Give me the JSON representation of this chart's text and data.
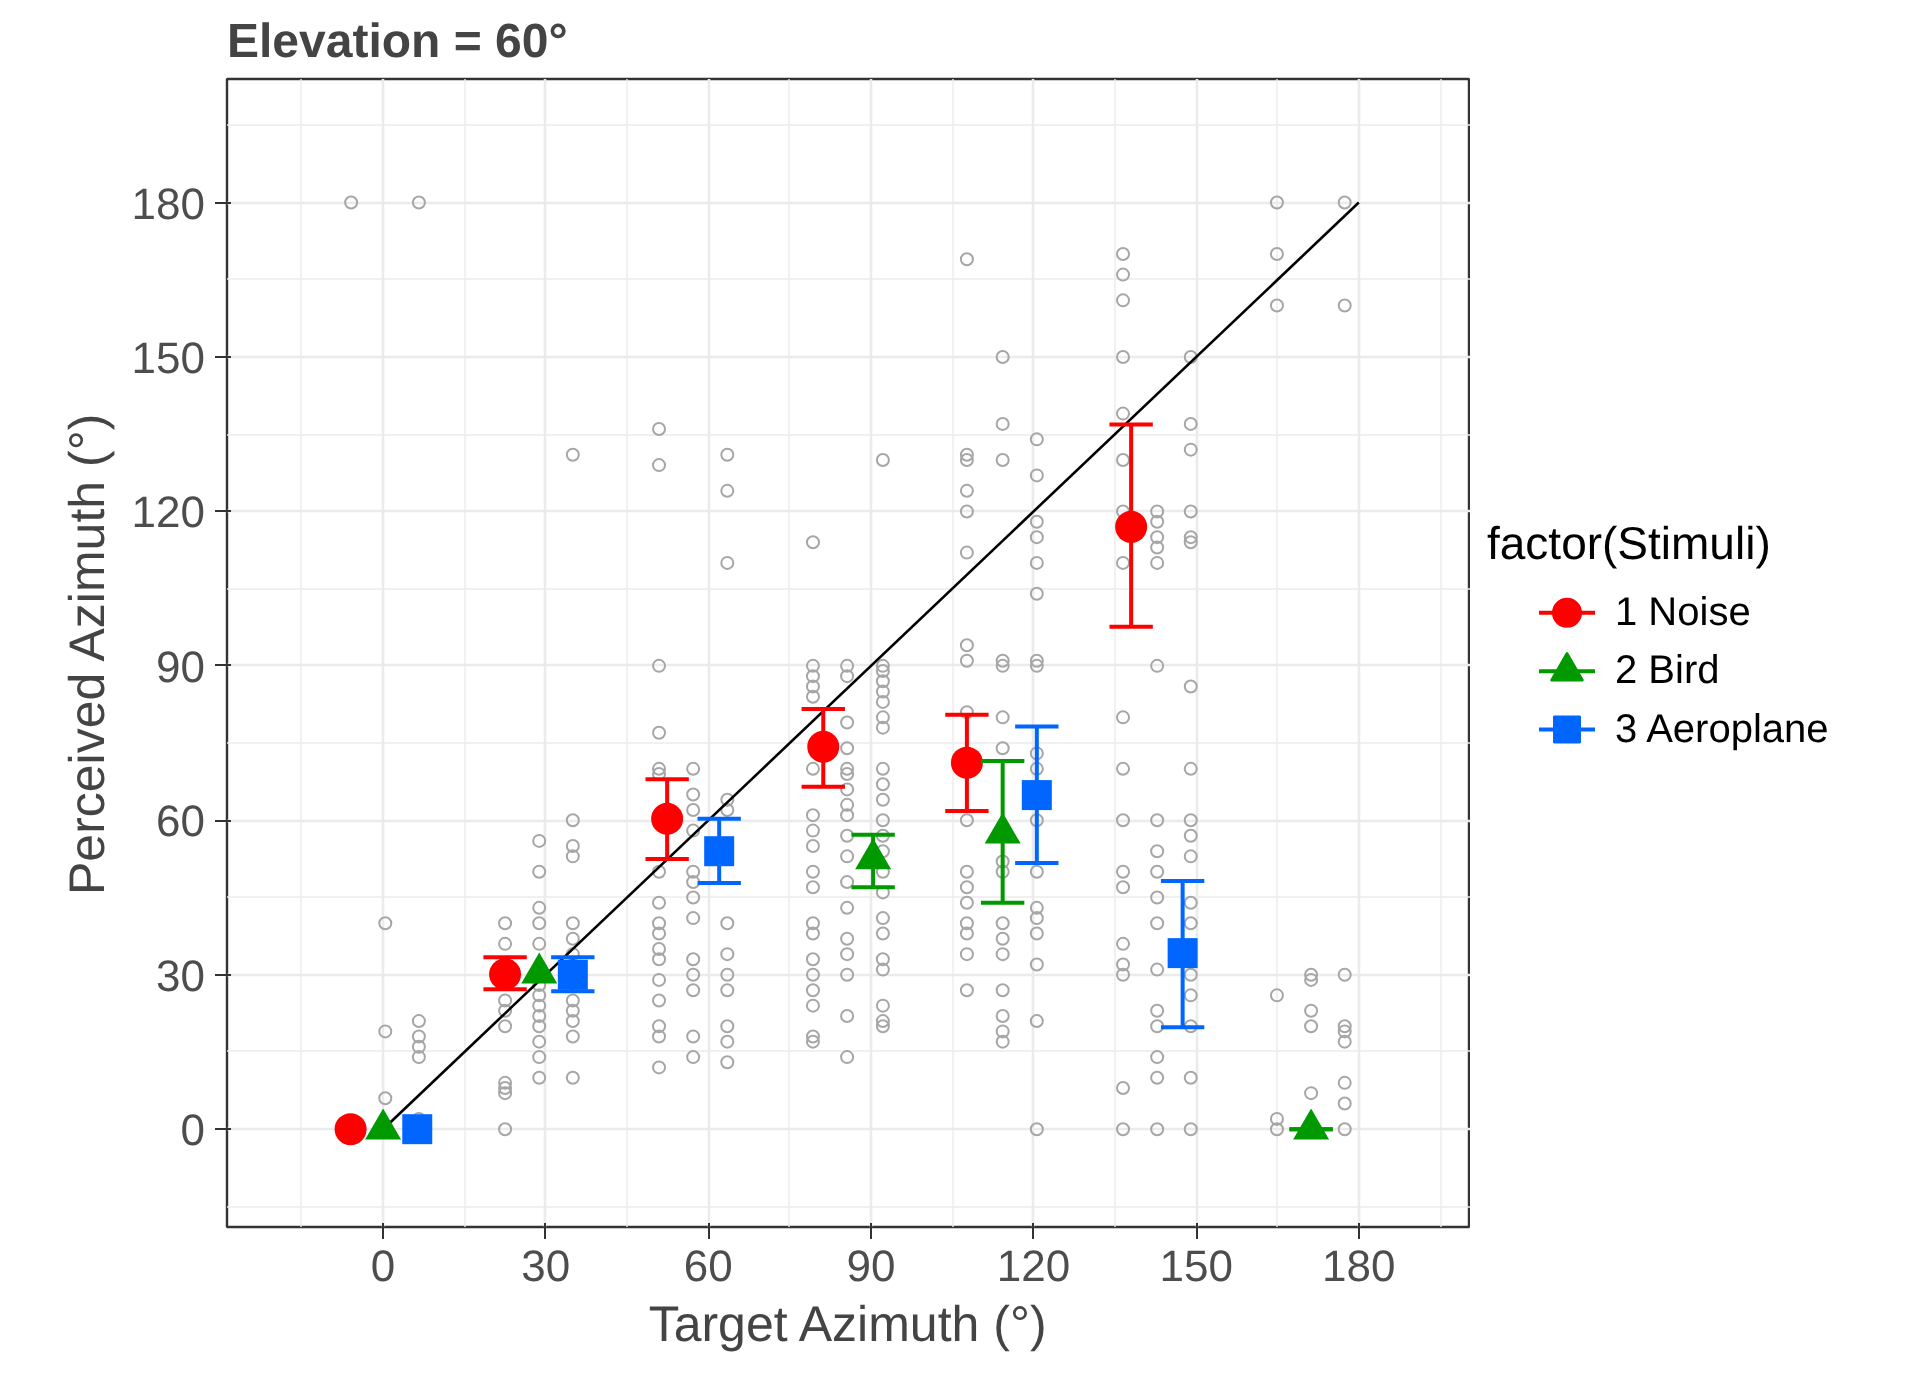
{
  "chart_data": {
    "type": "scatter",
    "title": "Elevation = 60°",
    "xlabel": "Target Azimuth (°)",
    "ylabel": "Perceived Azimuth (°)",
    "legend_title": "factor(Stimuli)",
    "xlim": [
      -28.8,
      200.7
    ],
    "ylim": [
      -19,
      204
    ],
    "xticks": [
      0,
      30,
      60,
      90,
      120,
      150,
      180
    ],
    "yticks": [
      0,
      30,
      60,
      90,
      120,
      150,
      180
    ],
    "grid": true,
    "legend": "right",
    "series": [
      {
        "color": "#a6a6a6",
        "marker": "circle",
        "x": [
          -5.9,
          0.4,
          0.4,
          0.4,
          6.6,
          6.6,
          6.6,
          6.6,
          6.6,
          6.6,
          22.5,
          22.5,
          22.5,
          22.5,
          22.5,
          22.5,
          22.5,
          22.5,
          22.5,
          28.8,
          28.8,
          28.8,
          28.8,
          28.8,
          28.8,
          28.8,
          28.8,
          28.8,
          28.8,
          28.8,
          28.8,
          28.8,
          35,
          35,
          35,
          35,
          35,
          35,
          35,
          35,
          35,
          35,
          35,
          35,
          50.9,
          50.9,
          50.9,
          50.9,
          50.9,
          50.9,
          50.9,
          50.9,
          50.9,
          50.9,
          50.9,
          50.9,
          50.9,
          50.9,
          50.9,
          50.9,
          50.9,
          57.2,
          57.2,
          57.2,
          57.2,
          57.2,
          57.2,
          57.2,
          57.2,
          57.2,
          57.2,
          57.2,
          57.2,
          57.2,
          63.5,
          63.5,
          63.5,
          63.5,
          63.5,
          63.5,
          63.5,
          63.5,
          63.5,
          63.5,
          63.5,
          63.5,
          79.3,
          79.3,
          79.3,
          79.3,
          79.3,
          79.3,
          79.3,
          79.3,
          79.3,
          79.3,
          79.3,
          79.3,
          79.3,
          79.3,
          79.3,
          79.3,
          79.3,
          79.3,
          79.3,
          85.6,
          85.6,
          85.6,
          85.6,
          85.6,
          85.6,
          85.6,
          85.6,
          85.6,
          85.6,
          85.6,
          85.6,
          85.6,
          85.6,
          85.6,
          85.6,
          85.6,
          85.6,
          92.2,
          92.2,
          92.2,
          92.2,
          92.2,
          92.2,
          92.2,
          92.2,
          92.2,
          92.2,
          92.2,
          92.2,
          92.2,
          92.2,
          92.2,
          92.2,
          92.2,
          92.2,
          92.2,
          92.2,
          92.2,
          92.2,
          92.2,
          107.7,
          107.7,
          107.7,
          107.7,
          107.7,
          107.7,
          107.7,
          107.7,
          107.7,
          107.7,
          107.7,
          107.7,
          107.7,
          107.7,
          107.7,
          107.7,
          107.7,
          114.3,
          114.3,
          114.3,
          114.3,
          114.3,
          114.3,
          114.3,
          114.3,
          114.3,
          114.3,
          114.3,
          114.3,
          114.3,
          114.3,
          114.3,
          114.3,
          120.6,
          120.6,
          120.6,
          120.6,
          120.6,
          120.6,
          120.6,
          120.6,
          120.6,
          120.6,
          120.6,
          120.6,
          120.6,
          120.6,
          120.6,
          120.6,
          120.6,
          120.6,
          136.5,
          136.5,
          136.5,
          136.5,
          136.5,
          136.5,
          136.5,
          136.5,
          136.5,
          136.5,
          136.5,
          136.5,
          136.5,
          136.5,
          136.5,
          136.5,
          136.5,
          136.5,
          142.8,
          142.8,
          142.8,
          142.8,
          142.8,
          142.8,
          142.8,
          142.8,
          142.8,
          142.8,
          142.8,
          142.8,
          142.8,
          142.8,
          142.8,
          142.8,
          142.8,
          149,
          149,
          149,
          149,
          149,
          149,
          149,
          149,
          149,
          149,
          149,
          149,
          149,
          149,
          149,
          149,
          149,
          149,
          164.9,
          164.9,
          164.9,
          164.9,
          164.9,
          164.9,
          171.2,
          171.2,
          171.2,
          171.2,
          171.2,
          177.4,
          177.4,
          177.4,
          177.4,
          177.4,
          177.4,
          177.4,
          177.4,
          177.4
        ],
        "values": [
          180,
          40,
          19,
          6,
          180,
          21,
          18,
          16,
          14,
          2,
          40,
          36,
          25,
          23,
          20,
          9,
          8,
          7,
          0,
          56,
          50,
          43,
          40,
          36,
          28,
          26,
          24,
          22,
          20,
          17,
          14,
          10,
          131,
          60,
          55,
          53,
          40,
          37,
          34,
          25,
          23,
          21,
          18,
          10,
          136,
          129,
          90,
          77,
          70,
          69,
          50,
          44,
          40,
          38,
          35,
          33,
          29,
          25,
          20,
          18,
          12,
          70,
          65,
          62,
          58,
          50,
          48,
          45,
          41,
          33,
          30,
          27,
          18,
          14,
          131,
          124,
          110,
          64,
          62,
          40,
          34,
          30,
          27,
          20,
          17,
          13,
          114,
          90,
          88,
          86,
          84,
          70,
          61,
          58,
          55,
          50,
          47,
          40,
          38,
          33,
          30,
          27,
          24,
          18,
          17,
          90,
          88,
          79,
          74,
          70,
          69,
          66,
          63,
          61,
          57,
          53,
          48,
          43,
          37,
          34,
          30,
          22,
          14,
          130,
          90,
          89,
          87,
          85,
          83,
          80,
          78,
          70,
          67,
          64,
          60,
          57,
          54,
          50,
          46,
          41,
          38,
          33,
          31,
          24,
          21,
          20,
          169,
          131,
          130,
          124,
          120,
          112,
          94,
          91,
          81,
          60,
          50,
          47,
          44,
          40,
          38,
          34,
          27,
          150,
          137,
          130,
          91,
          90,
          80,
          74,
          52,
          50,
          40,
          37,
          34,
          27,
          22,
          19,
          17,
          134,
          127,
          118,
          115,
          110,
          104,
          91,
          90,
          73,
          70,
          60,
          50,
          43,
          41,
          38,
          32,
          21,
          0,
          170,
          166,
          161,
          150,
          139,
          130,
          120,
          110,
          80,
          70,
          60,
          50,
          47,
          36,
          32,
          30,
          8,
          0,
          120,
          118,
          115,
          113,
          110,
          90,
          60,
          54,
          50,
          45,
          40,
          31,
          23,
          20,
          14,
          10,
          0,
          150,
          137,
          132,
          120,
          115,
          114,
          86,
          70,
          60,
          57,
          53,
          44,
          40,
          30,
          26,
          20,
          10,
          0,
          180,
          170,
          160,
          26,
          2,
          0,
          30,
          29,
          23,
          20,
          7,
          180,
          160,
          30,
          20,
          19,
          17,
          9,
          5,
          0
        ]
      },
      {
        "type": "line",
        "color": "#000000",
        "marker": "none",
        "x": [
          0,
          180
        ],
        "values": [
          0,
          180
        ]
      },
      {
        "name": "1 Noise",
        "color": "#ff0000",
        "marker": "circle",
        "x": [
          -6,
          22.5,
          52.4,
          81.2,
          107.7,
          138
        ],
        "values": [
          0,
          30.1,
          60.3,
          74.3,
          71.2,
          117
        ],
        "errors": [
          null,
          [
            27.2,
            33.4
          ],
          [
            52.5,
            68
          ],
          [
            66.5,
            81.6
          ],
          [
            61.8,
            80.5
          ],
          [
            97.6,
            136.9
          ]
        ]
      },
      {
        "name": "2 Bird",
        "color": "#009900",
        "marker": "triangle",
        "x": [
          0,
          28.8,
          90.4,
          114.3,
          171.2
        ],
        "values": [
          0,
          30.3,
          52.5,
          57.5,
          0
        ],
        "errors": [
          null,
          null,
          [
            47,
            57.2
          ],
          [
            44,
            71.5
          ],
          [
            0,
            0
          ]
        ]
      },
      {
        "name": "3 Aeroplane",
        "color": "#0066ff",
        "marker": "square",
        "x": [
          6.3,
          35,
          62,
          120.6,
          147.5
        ],
        "values": [
          0,
          30,
          54,
          64.9,
          34.2
        ],
        "errors": [
          null,
          [
            26.8,
            33.4
          ],
          [
            47.8,
            60.3
          ],
          [
            51.7,
            78.2
          ],
          [
            19.8,
            48.2
          ]
        ]
      }
    ]
  }
}
